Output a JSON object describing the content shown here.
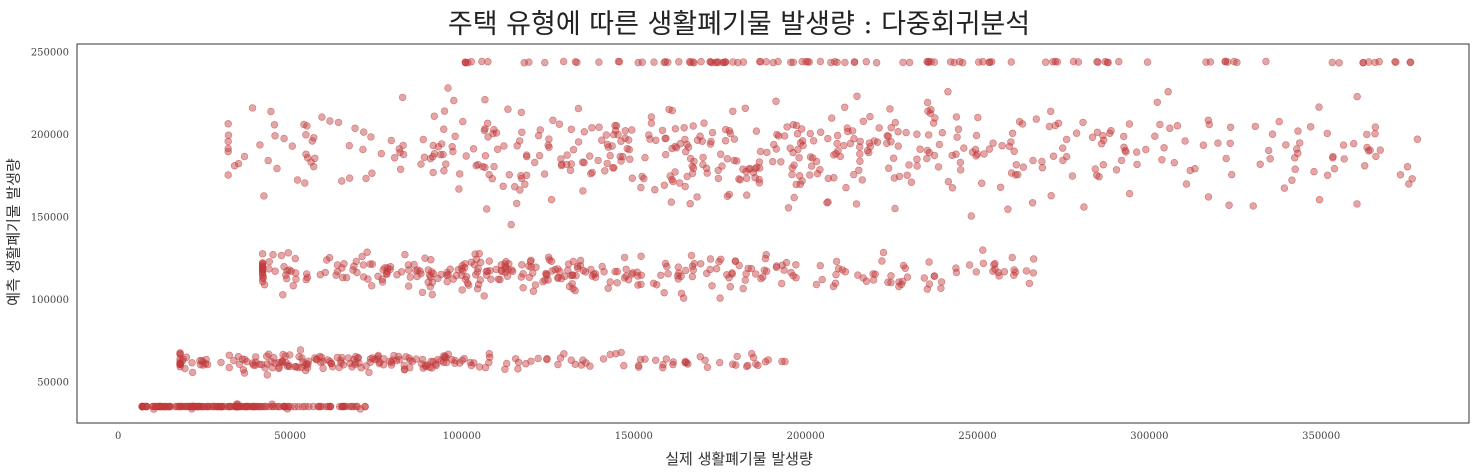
{
  "chart_data": {
    "type": "scatter",
    "title": "주택 유형에 따른 생활폐기물 발생량 : 다중회귀분석",
    "xlabel": "실제 생활폐기물 발생량",
    "ylabel": "예측 생활폐기물 발생량",
    "xlim": [
      -12000,
      393000
    ],
    "ylim": [
      25000,
      255000
    ],
    "xticks": [
      0,
      50000,
      100000,
      150000,
      200000,
      250000,
      300000,
      350000
    ],
    "yticks": [
      50000,
      100000,
      150000,
      200000,
      250000
    ],
    "grid": false,
    "legend": "none",
    "marker_color": "#c0393b",
    "marker_alpha": 0.45,
    "clusters": [
      {
        "y": 35000,
        "x_range": [
          7000,
          72000
        ],
        "count": 170,
        "y_jitter": 600,
        "x_peak": 25000,
        "peak_width": 12000
      },
      {
        "y": 62000,
        "x_range": [
          18000,
          195000
        ],
        "count": 230,
        "y_jitter": 4500,
        "x_peak": 55000,
        "peak_width": 30000
      },
      {
        "y": 116000,
        "x_range": [
          42000,
          267000
        ],
        "count": 340,
        "y_jitter": 9000,
        "x_peak": 115000,
        "peak_width": 45000
      },
      {
        "y": 190000,
        "x_range": [
          32000,
          378000
        ],
        "count": 520,
        "y_jitter": 24000,
        "x_peak": 185000,
        "peak_width": 60000
      },
      {
        "y": 244000,
        "x_range": [
          101000,
          376000
        ],
        "count": 110,
        "y_jitter": 800,
        "x_peak": 230000,
        "peak_width": 90000
      }
    ]
  }
}
